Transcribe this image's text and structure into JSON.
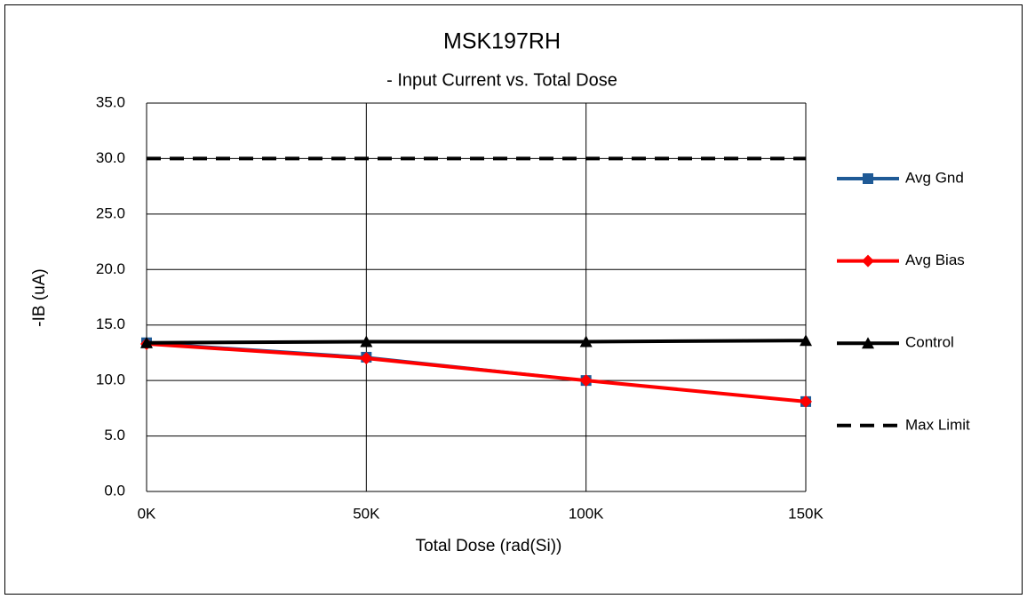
{
  "chart_data": {
    "type": "line",
    "title": "MSK197RH",
    "subtitle": "- Input Current vs. Total Dose",
    "x_label": "Total Dose (rad(Si))",
    "y_label": "-IB (uA)",
    "categories": [
      "0K",
      "50K",
      "100K",
      "150K"
    ],
    "series": [
      {
        "name": "Avg Gnd",
        "color": "#1f5a96",
        "marker": "square",
        "values": [
          13.4,
          12.1,
          10.0,
          8.1
        ]
      },
      {
        "name": "Avg Bias",
        "color": "#ff0000",
        "marker": "diamond",
        "values": [
          13.3,
          12.0,
          10.0,
          8.1
        ]
      },
      {
        "name": "Control",
        "color": "#000000",
        "marker": "triangle",
        "values": [
          13.4,
          13.5,
          13.5,
          13.6
        ]
      },
      {
        "name": "Max Limit",
        "color": "#000000",
        "dash": true,
        "values": [
          30,
          30,
          30,
          30
        ]
      }
    ],
    "ylim": [
      0,
      35
    ],
    "yticks": [
      {
        "value": 0,
        "label": "0.0"
      },
      {
        "value": 5,
        "label": "5.0"
      },
      {
        "value": 10,
        "label": "10.0"
      },
      {
        "value": 15,
        "label": "15.0"
      },
      {
        "value": 20,
        "label": "20.0"
      },
      {
        "value": 25,
        "label": "25.0"
      },
      {
        "value": 30,
        "label": "30.0"
      },
      {
        "value": 35,
        "label": "35.0"
      }
    ],
    "grid": true,
    "legend": "right"
  }
}
